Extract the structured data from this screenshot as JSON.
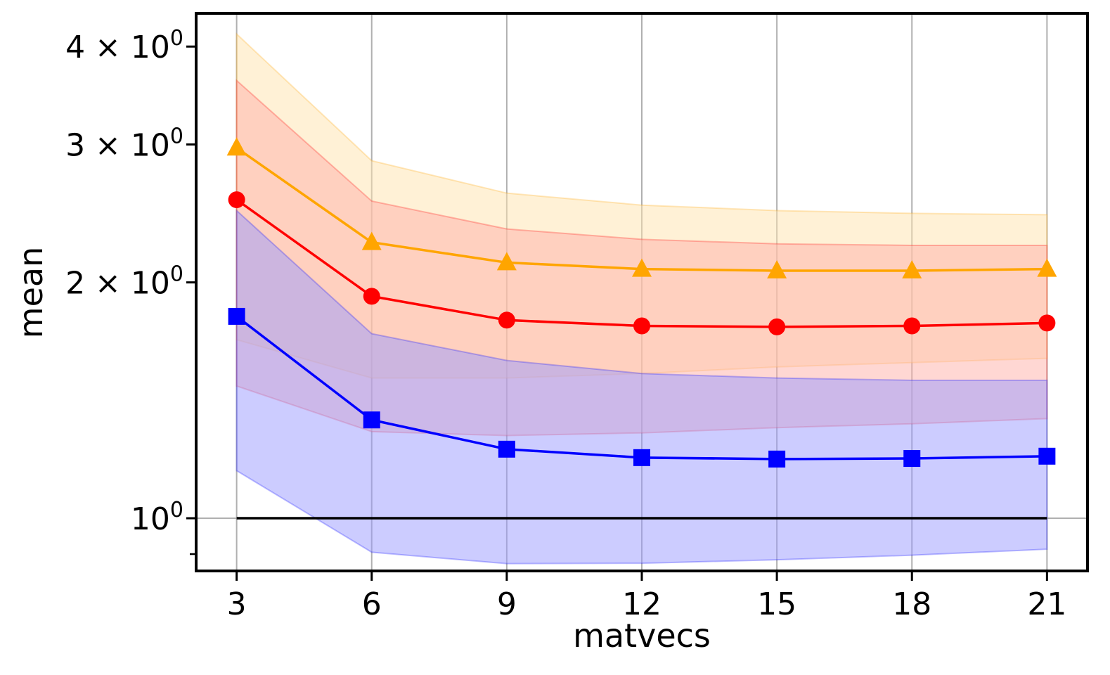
{
  "chart_data": {
    "type": "line",
    "title": "",
    "xlabel": "matvecs",
    "ylabel": "mean",
    "yscale": "log",
    "xlim": [
      2.1,
      21.9
    ],
    "ylim": [
      0.8565,
      4.41
    ],
    "grid": "vertical",
    "x": [
      3,
      6,
      9,
      12,
      15,
      18,
      21
    ],
    "xticks": [
      3,
      6,
      9,
      12,
      15,
      18,
      21
    ],
    "xtick_labels": [
      "3",
      "6",
      "9",
      "12",
      "15",
      "18",
      "21"
    ],
    "yticks": [
      {
        "value": 1,
        "base": "10",
        "exp": "0",
        "mult": ""
      },
      {
        "value": 2,
        "base": "10",
        "exp": "0",
        "mult": "2 × "
      },
      {
        "value": 3,
        "base": "10",
        "exp": "0",
        "mult": "3 × "
      },
      {
        "value": 4,
        "base": "10",
        "exp": "0",
        "mult": "4 × "
      }
    ],
    "minor_yticks": [
      0.9
    ],
    "reference_line": {
      "y": 1,
      "color": "#000000"
    },
    "series": [
      {
        "name": "orange",
        "color": "#ffa500",
        "marker": "triangle",
        "values": [
          2.97,
          2.25,
          2.12,
          2.08,
          2.07,
          2.07,
          2.08
        ],
        "band_upper": [
          4.15,
          2.86,
          2.6,
          2.51,
          2.47,
          2.45,
          2.44
        ],
        "band_lower": [
          1.69,
          1.51,
          1.51,
          1.53,
          1.56,
          1.58,
          1.6
        ],
        "band_fill": "#ffe4ae"
      },
      {
        "name": "red",
        "color": "#ff0000",
        "marker": "circle",
        "values": [
          2.55,
          1.92,
          1.79,
          1.76,
          1.755,
          1.76,
          1.775
        ],
        "band_upper": [
          3.62,
          2.54,
          2.34,
          2.27,
          2.24,
          2.23,
          2.23
        ],
        "band_lower": [
          1.475,
          1.29,
          1.275,
          1.285,
          1.305,
          1.32,
          1.34
        ],
        "band_fill": "#ffb0a8"
      },
      {
        "name": "blue",
        "color": "#0000ff",
        "marker": "square",
        "values": [
          1.81,
          1.335,
          1.225,
          1.195,
          1.19,
          1.192,
          1.2
        ],
        "band_upper": [
          2.47,
          1.72,
          1.59,
          1.53,
          1.51,
          1.5,
          1.5
        ],
        "band_lower": [
          1.15,
          0.905,
          0.875,
          0.876,
          0.885,
          0.897,
          0.913
        ],
        "band_fill": "#9999ff"
      }
    ]
  }
}
